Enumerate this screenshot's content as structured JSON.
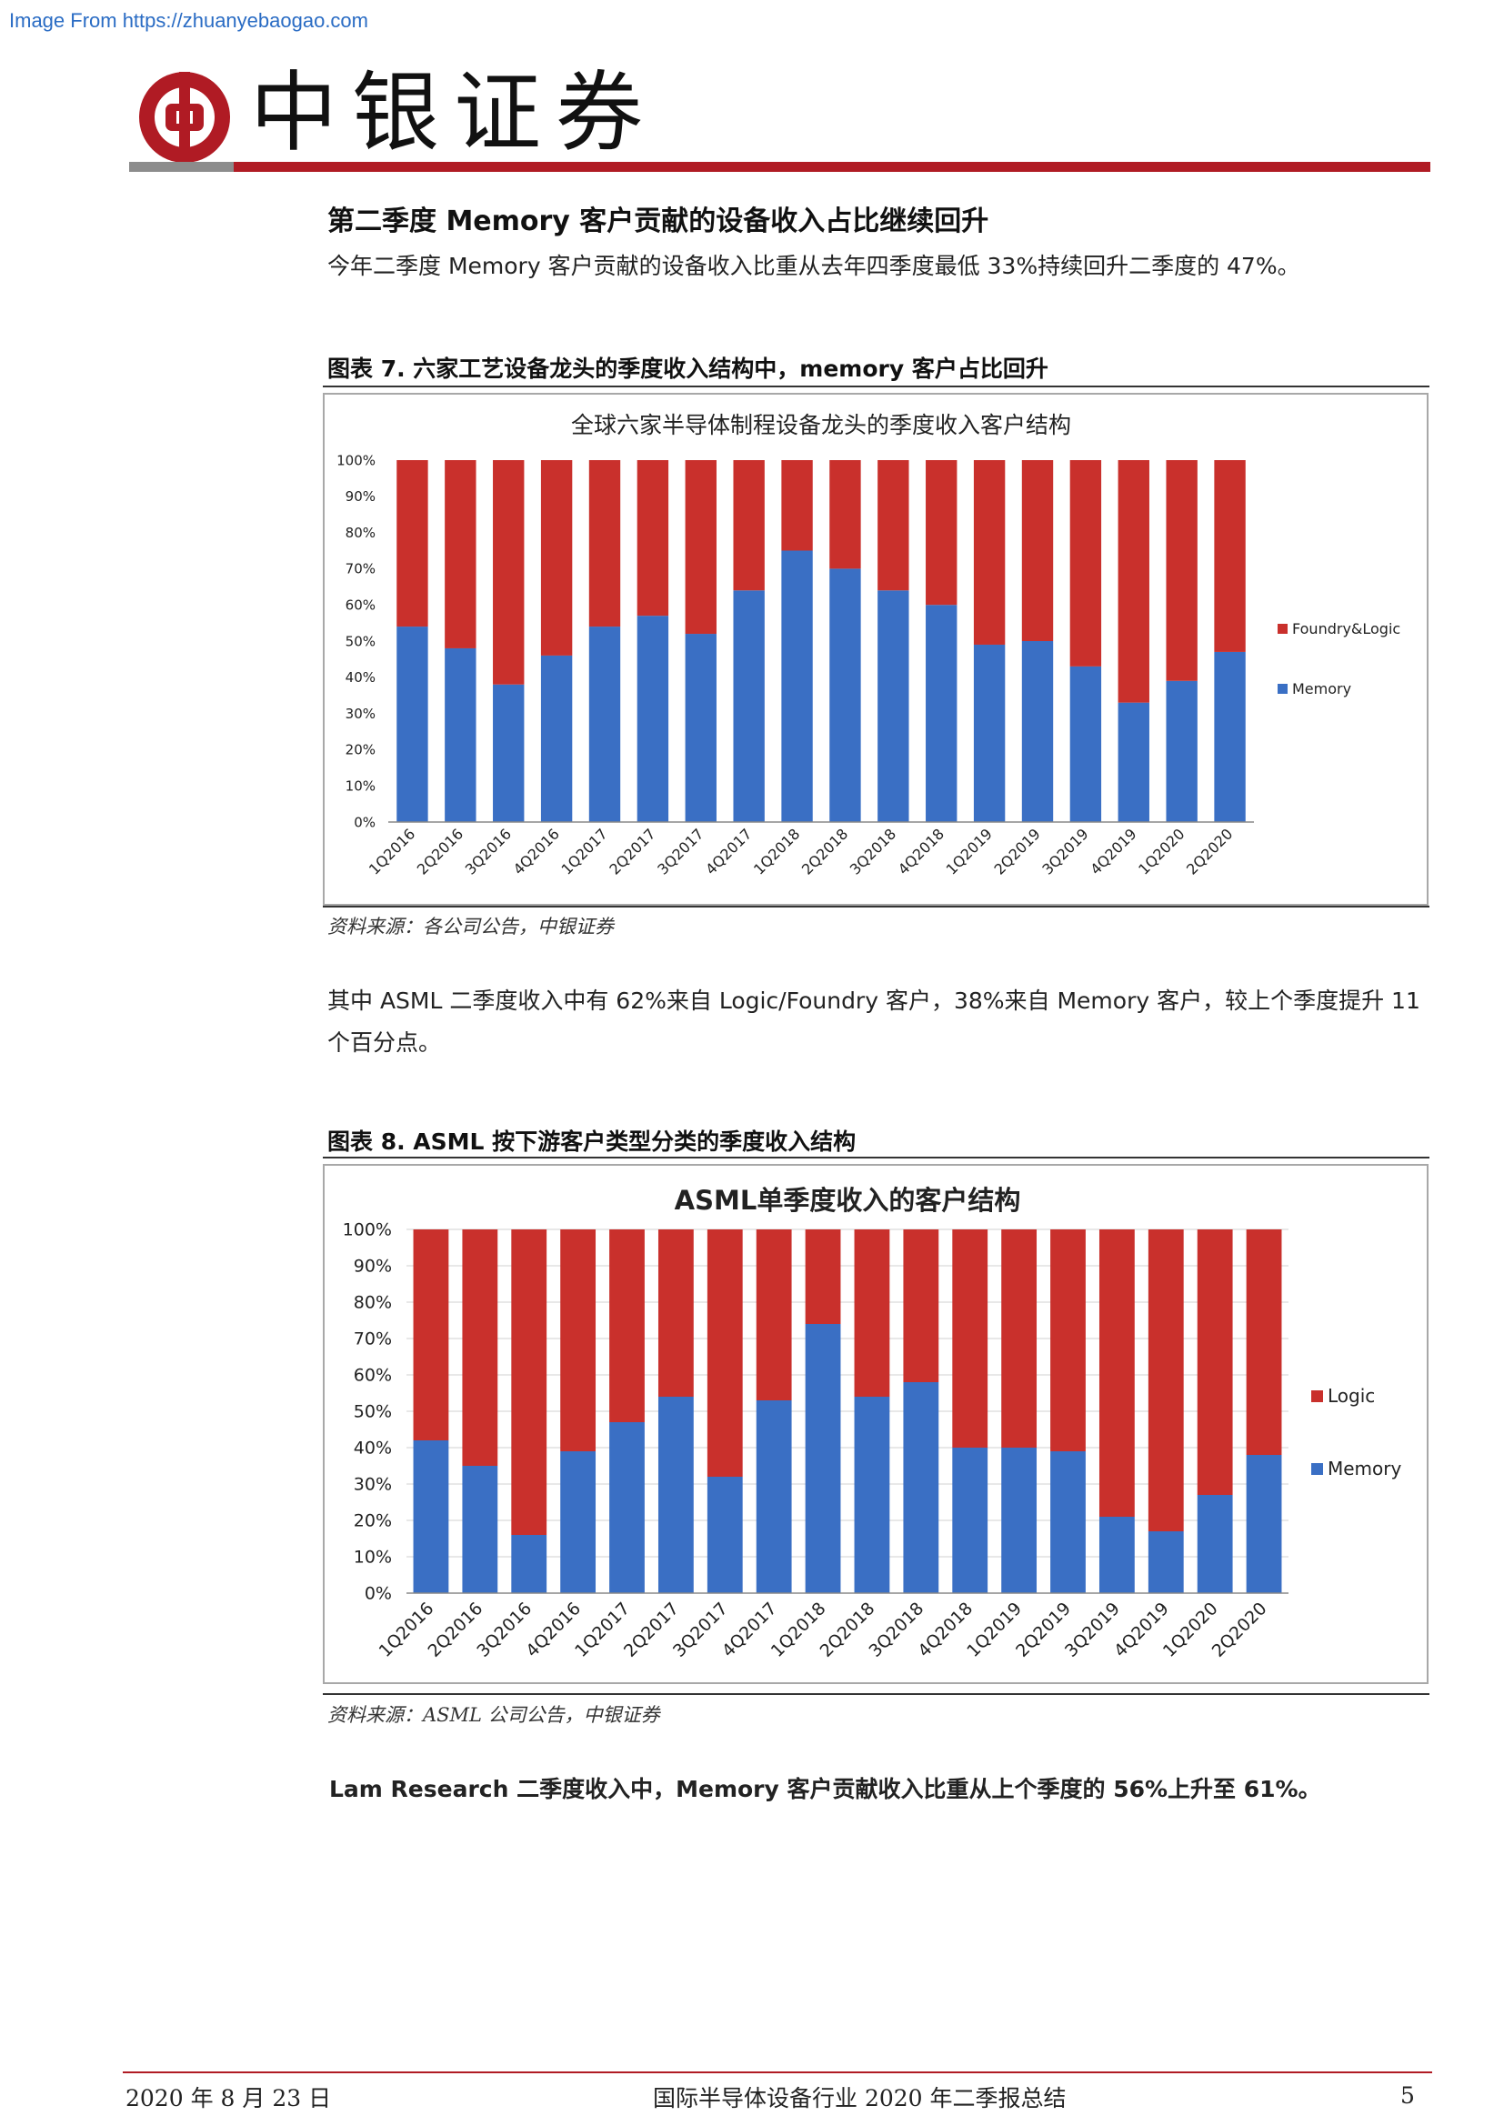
{
  "watermark": "Image From https://zhuanyebaogao.com",
  "header": {
    "brand": "中银证券"
  },
  "section1": {
    "title": "第二季度 Memory 客户贡献的设备收入占比继续回升",
    "para": "今年二季度 Memory 客户贡献的设备收入比重从去年四季度最低 33%持续回升二季度的 47%。"
  },
  "figure7": {
    "caption": "图表 7. 六家工艺设备龙头的季度收入结构中，memory 客户占比回升",
    "source": "资料来源：各公司公告，中银证券"
  },
  "para2": "其中 ASML 二季度收入中有 62%来自 Logic/Foundry 客户，38%来自 Memory 客户，较上个季度提升 11 个百分点。",
  "figure8": {
    "caption": "图表 8. ASML 按下游客户类型分类的季度收入结构",
    "source": "资料来源：ASML 公司公告，中银证券"
  },
  "para3": "Lam Research 二季度收入中，Memory 客户贡献收入比重从上个季度的 56%上升至 61%。",
  "footer": {
    "date": "2020 年 8 月 23 日",
    "title": "国际半导体设备行业 2020 年二季报总结",
    "page": "5"
  },
  "chart_data": [
    {
      "type": "bar",
      "stacked": true,
      "title": "全球六家半导体制程设备龙头的季度收入客户结构",
      "categories": [
        "1Q2016",
        "2Q2016",
        "3Q2016",
        "4Q2016",
        "1Q2017",
        "2Q2017",
        "3Q2017",
        "4Q2017",
        "1Q2018",
        "2Q2018",
        "3Q2018",
        "4Q2018",
        "1Q2019",
        "2Q2019",
        "3Q2019",
        "4Q2019",
        "1Q2020",
        "2Q2020"
      ],
      "series": [
        {
          "name": "Memory",
          "color": "#3a6fc4",
          "values": [
            54,
            48,
            38,
            46,
            54,
            57,
            52,
            64,
            75,
            70,
            64,
            60,
            49,
            50,
            43,
            33,
            39,
            47
          ]
        },
        {
          "name": "Foundry&Logic",
          "color": "#c9302c",
          "values": [
            46,
            52,
            62,
            54,
            46,
            43,
            48,
            36,
            25,
            30,
            36,
            40,
            51,
            50,
            57,
            67,
            61,
            53
          ]
        }
      ],
      "yticks": [
        "0%",
        "10%",
        "20%",
        "30%",
        "40%",
        "50%",
        "60%",
        "70%",
        "80%",
        "90%",
        "100%"
      ],
      "ylim": [
        0,
        100
      ],
      "legend": "right",
      "legend_order": [
        "Foundry&Logic",
        "Memory"
      ],
      "grid": false
    },
    {
      "type": "bar",
      "stacked": true,
      "title": "ASML单季度收入的客户结构",
      "categories": [
        "1Q2016",
        "2Q2016",
        "3Q2016",
        "4Q2016",
        "1Q2017",
        "2Q2017",
        "3Q2017",
        "4Q2017",
        "1Q2018",
        "2Q2018",
        "3Q2018",
        "4Q2018",
        "1Q2019",
        "2Q2019",
        "3Q2019",
        "4Q2019",
        "1Q2020",
        "2Q2020"
      ],
      "series": [
        {
          "name": "Memory",
          "color": "#3a6fc4",
          "values": [
            42,
            35,
            16,
            39,
            47,
            54,
            32,
            53,
            74,
            54,
            58,
            40,
            40,
            39,
            21,
            17,
            27,
            38
          ]
        },
        {
          "name": "Logic",
          "color": "#c9302c",
          "values": [
            58,
            65,
            84,
            61,
            53,
            46,
            68,
            47,
            26,
            46,
            42,
            60,
            60,
            61,
            79,
            83,
            73,
            62
          ]
        }
      ],
      "yticks": [
        "0%",
        "10%",
        "20%",
        "30%",
        "40%",
        "50%",
        "60%",
        "70%",
        "80%",
        "90%",
        "100%"
      ],
      "ylim": [
        0,
        100
      ],
      "legend": "right",
      "legend_order": [
        "Logic",
        "Memory"
      ],
      "grid": true
    }
  ]
}
